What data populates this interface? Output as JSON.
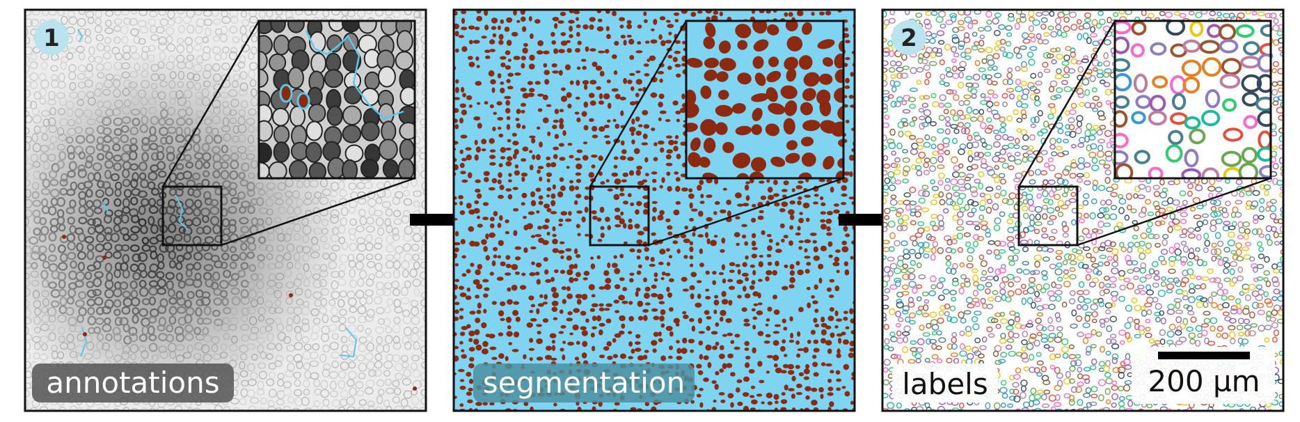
{
  "panels": [
    {
      "id": "annotations",
      "label": "annotations",
      "badge": "1"
    },
    {
      "id": "segmentation",
      "label": "segmentation",
      "badge": ""
    },
    {
      "id": "labels",
      "label": "labels",
      "badge": "2"
    }
  ],
  "scalebar": {
    "text": "200 µm"
  },
  "colors": {
    "annotation_line": "#5ac8e8",
    "segmentation_background": "#7fd4f2",
    "segmentation_foreground": "#8b2a10",
    "badge_fill": "#b9e3ef",
    "label_pill_dark": "#555555",
    "label_pill_teal": "#4b8fa0",
    "frame": "#111111"
  }
}
